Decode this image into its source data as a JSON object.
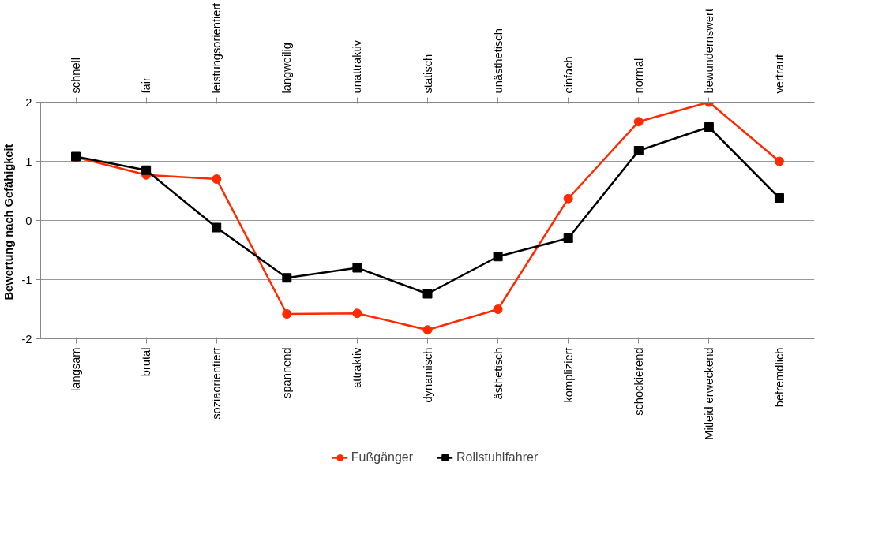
{
  "chart_data": {
    "type": "line",
    "ylabel": "Bewertung  nach Gefähigkeit",
    "categories": [
      "langsam",
      "brutal",
      "soziaorientiert",
      "spannend",
      "attraktiv",
      "dynamisch",
      "ästhetisch",
      "kompliziert",
      "schockierend",
      "Mitleid erweckend",
      "befremdlich"
    ],
    "annotations": [
      "schnell",
      "fair",
      "leistungsorientiert",
      "langweilig",
      "unattraktiv",
      "statisch",
      "unästhetisch",
      "einfach",
      "normal",
      "bewundernswert",
      "vertraut"
    ],
    "ylim": [
      -2,
      2
    ],
    "yticks": [
      -2,
      -1,
      0,
      1,
      2
    ],
    "grid": "y",
    "legend": "bottom",
    "series": [
      {
        "name": "Fußgänger",
        "color": "#ff2a00",
        "marker": "circle",
        "values": [
          1.07,
          0.77,
          0.7,
          -1.58,
          -1.57,
          -1.85,
          -1.5,
          0.37,
          1.67,
          2.0,
          1.0
        ]
      },
      {
        "name": "Rollstuhlfahrer",
        "color": "#000000",
        "marker": "square",
        "values": [
          1.08,
          0.85,
          -0.12,
          -0.97,
          -0.8,
          -1.24,
          -0.61,
          -0.3,
          1.18,
          1.58,
          0.38
        ]
      }
    ]
  }
}
